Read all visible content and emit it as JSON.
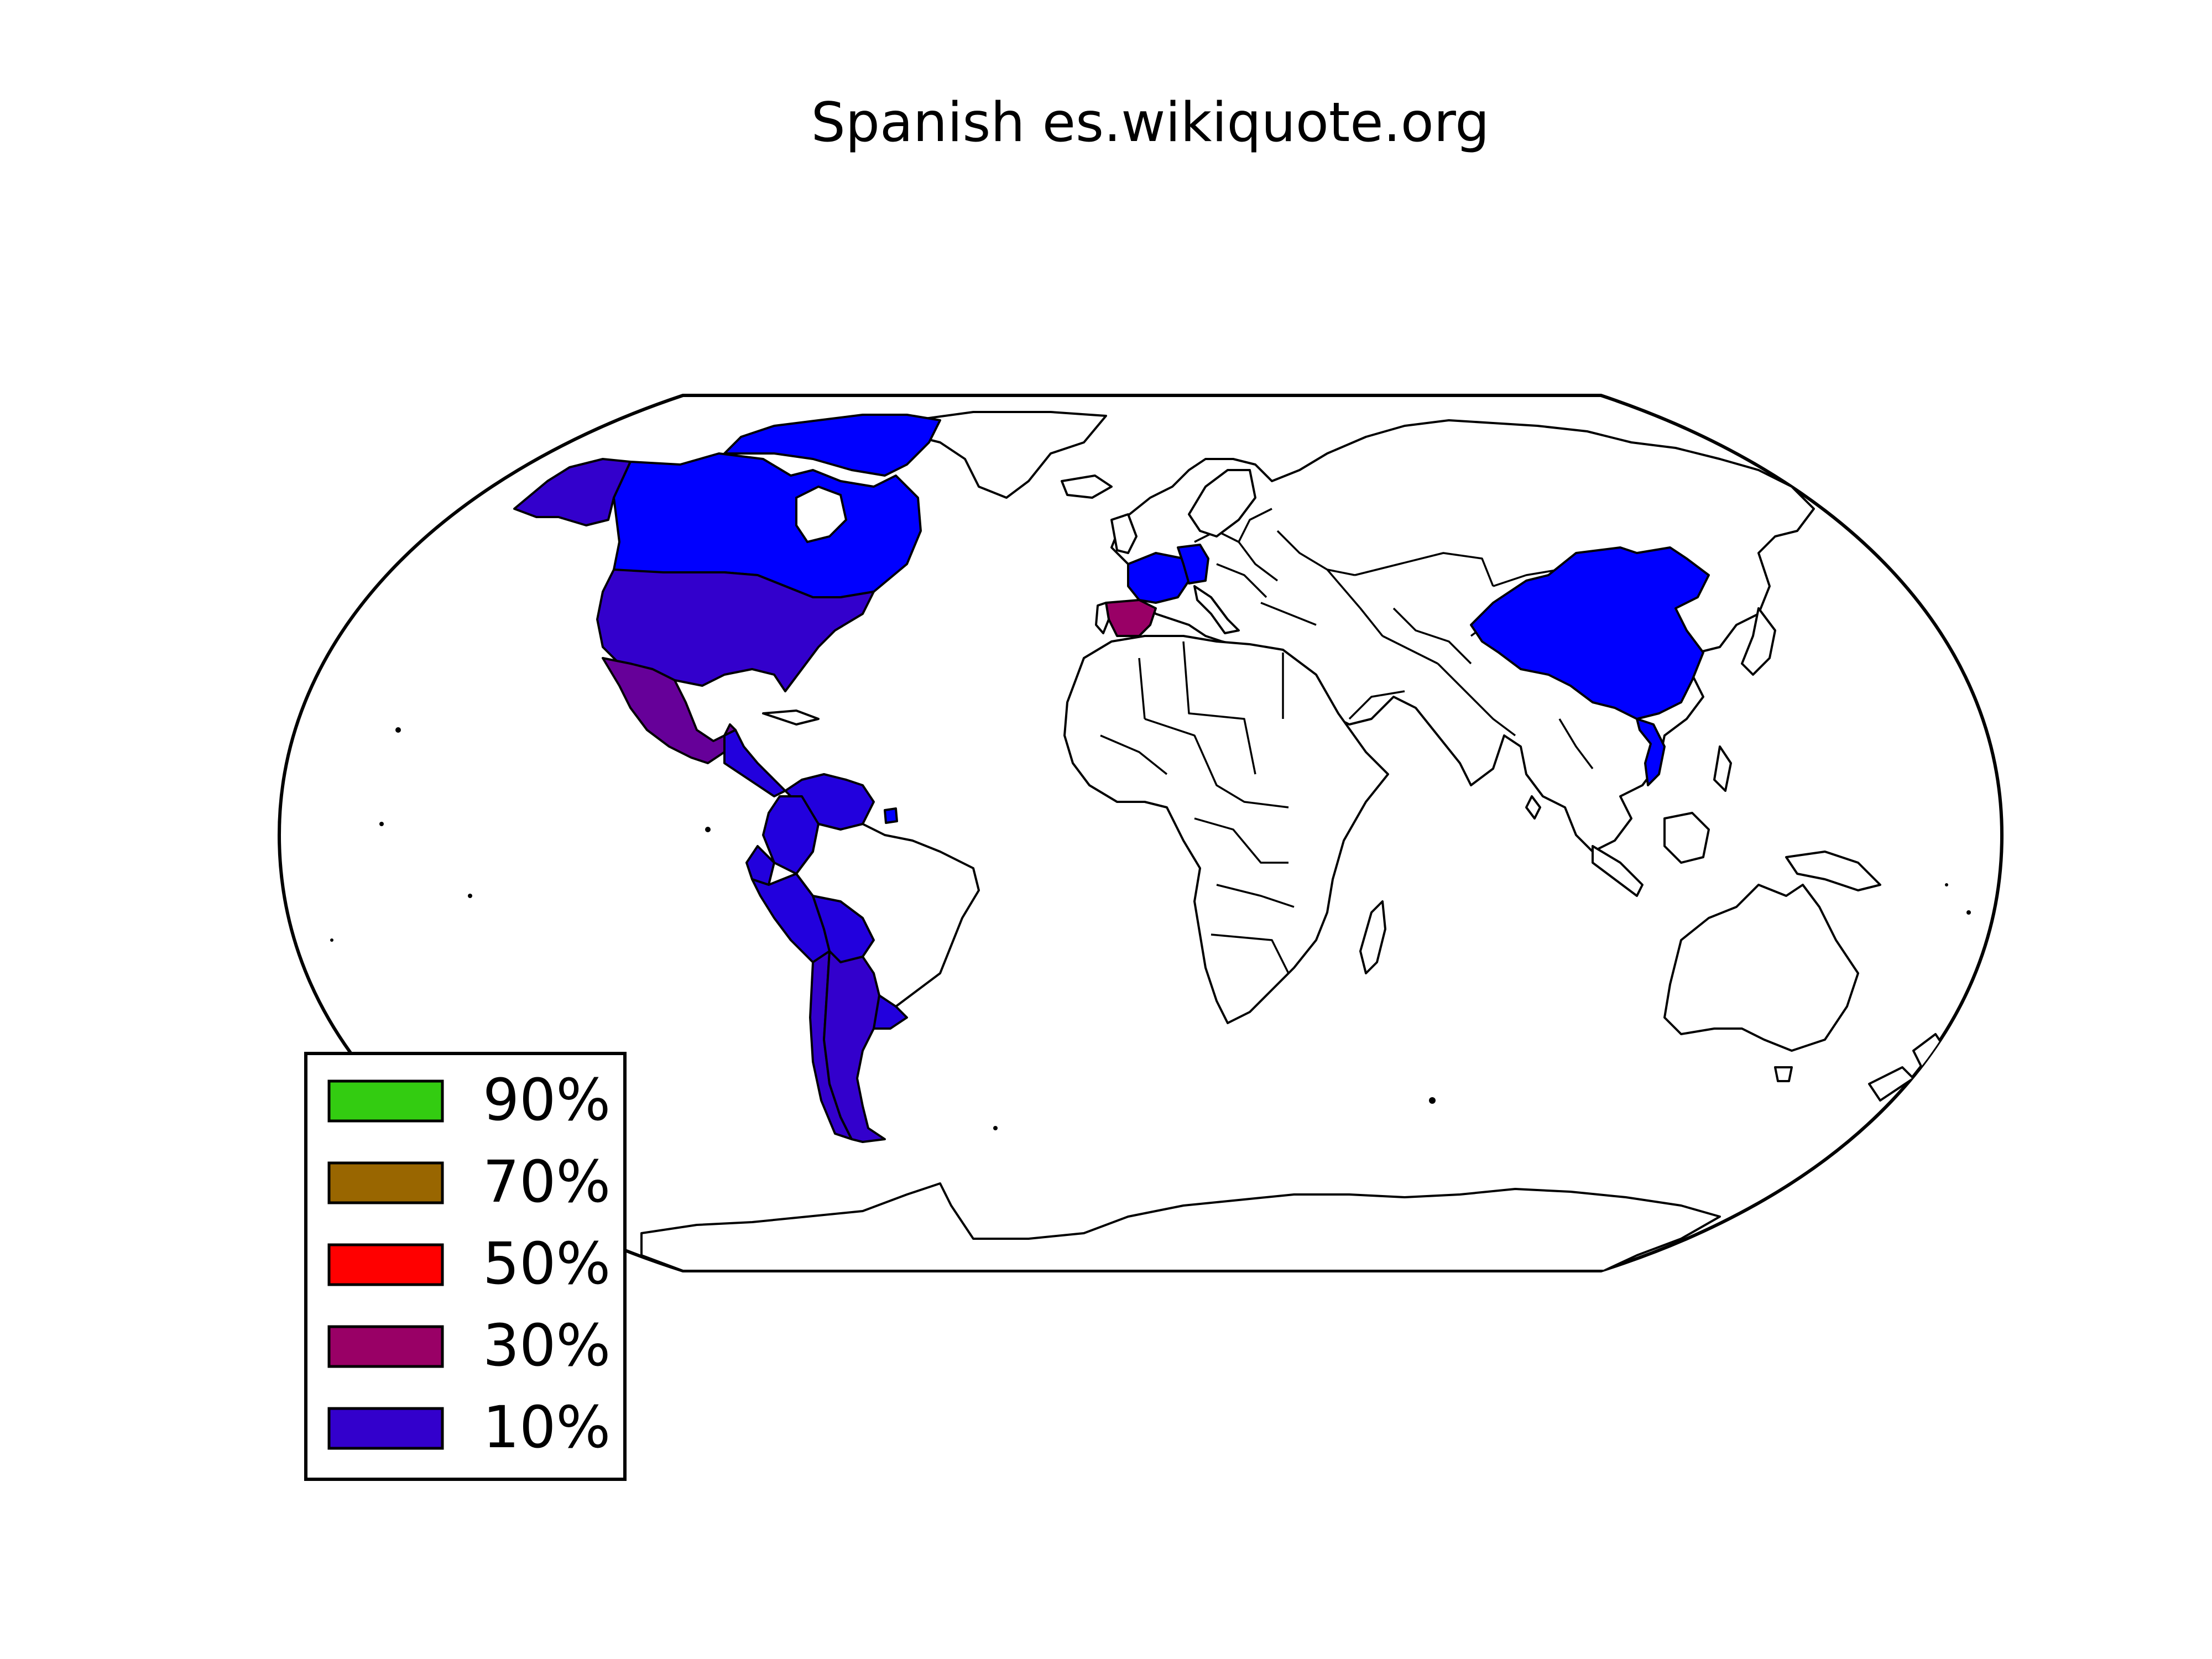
{
  "title": "Spanish es.wikiquote.org",
  "legend": [
    {
      "label": "90%",
      "color": "#33cc11"
    },
    {
      "label": "70%",
      "color": "#996600"
    },
    {
      "label": "50%",
      "color": "#ff0000"
    },
    {
      "label": "30%",
      "color": "#990066"
    },
    {
      "label": "10%",
      "color": "#3300cc"
    }
  ],
  "map": {
    "projection": "robinson",
    "countries": [
      {
        "name": "Spain",
        "color": "#990066"
      },
      {
        "name": "Mexico",
        "color": "#660099"
      },
      {
        "name": "United States",
        "color": "#3300cc"
      },
      {
        "name": "Alaska",
        "color": "#3300cc"
      },
      {
        "name": "Canada",
        "color": "#0000ff"
      },
      {
        "name": "Greenland (northern Canada islands)",
        "color": "#0000ff"
      },
      {
        "name": "France",
        "color": "#0000ff"
      },
      {
        "name": "Germany",
        "color": "#0000ff"
      },
      {
        "name": "China",
        "color": "#0000ff"
      },
      {
        "name": "Vietnam",
        "color": "#0000ff"
      },
      {
        "name": "Colombia",
        "color": "#2200dd"
      },
      {
        "name": "Venezuela",
        "color": "#2200dd"
      },
      {
        "name": "Ecuador",
        "color": "#2200dd"
      },
      {
        "name": "Peru",
        "color": "#2200dd"
      },
      {
        "name": "Bolivia",
        "color": "#2200dd"
      },
      {
        "name": "Chile",
        "color": "#3300cc"
      },
      {
        "name": "Argentina",
        "color": "#3300cc"
      },
      {
        "name": "Uruguay",
        "color": "#2200dd"
      },
      {
        "name": "Central America",
        "color": "#2200dd"
      }
    ]
  }
}
